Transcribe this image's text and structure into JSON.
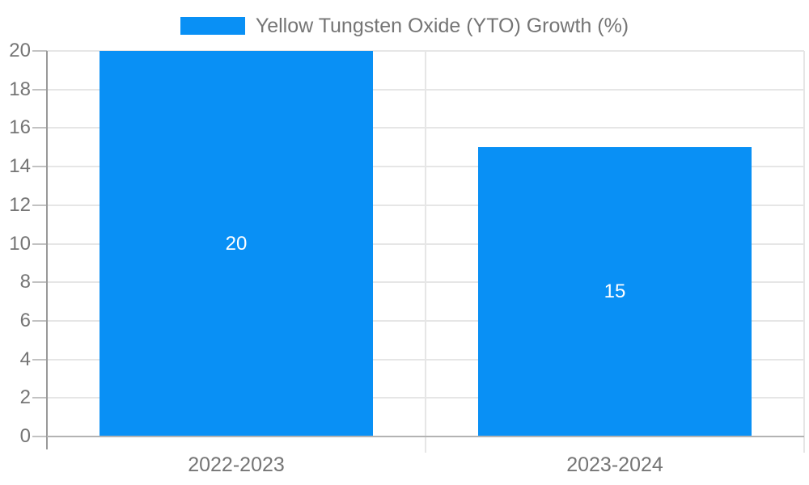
{
  "chart_data": {
    "type": "bar",
    "categories": [
      "2022-2023",
      "2023-2024"
    ],
    "series": [
      {
        "name": "Yellow Tungsten Oxide (YTO) Growth (%)",
        "values": [
          20,
          15
        ]
      }
    ],
    "bar_value_labels": [
      "20",
      "15"
    ],
    "ylim": [
      0,
      20
    ],
    "yticks": [
      0,
      2,
      4,
      6,
      8,
      10,
      12,
      14,
      16,
      18,
      20
    ],
    "grid": true,
    "legend_position": "top"
  },
  "colors": {
    "bar": "#0990f5",
    "text": "#757575",
    "value_label_text": "#ffffff",
    "axis_line": "#999999",
    "baseline": "#b3b3b3",
    "gridline": "#e6e6e6",
    "tick_mark": "#c2c2c2",
    "background": "#ffffff"
  }
}
